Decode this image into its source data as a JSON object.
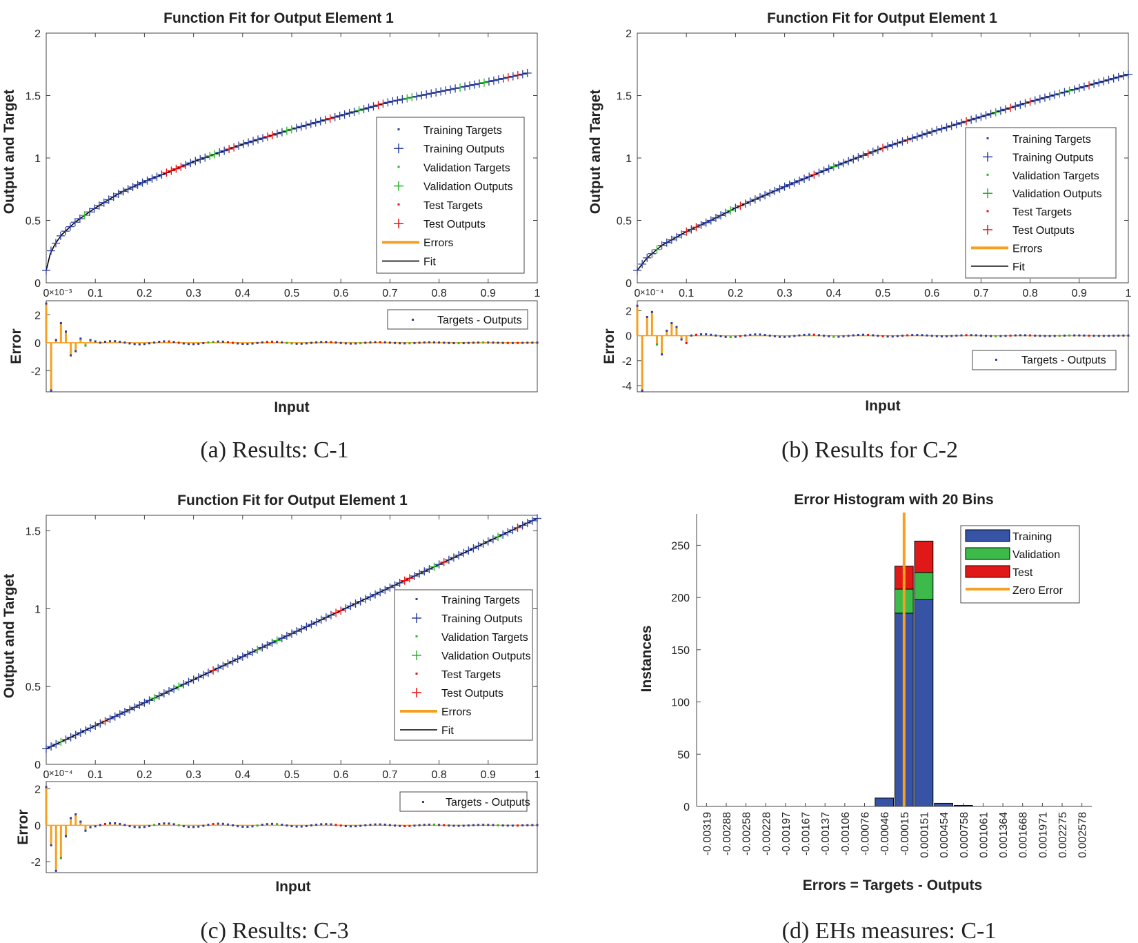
{
  "figure": {
    "captions": [
      "(a) Results: C-1",
      "(b) Results for C-2",
      "(c) Results: C-3",
      "(d) EHs measures: C-1"
    ]
  },
  "legend_labels": {
    "fit": [
      "Training Targets",
      "Training Outputs",
      "Validation Targets",
      "Validation Outputs",
      "Test Targets",
      "Test Outputs",
      "Errors",
      "Fit"
    ],
    "error": "Targets - Outputs",
    "hist": [
      "Training",
      "Validation",
      "Test",
      "Zero Error"
    ]
  },
  "colors": {
    "training": "#2b3fa0",
    "validation": "#2bb02b",
    "test": "#e81010",
    "errors": "#f5a020",
    "fit": "#000000",
    "hist_training": "#3653a6",
    "hist_validation": "#3cba4a",
    "hist_test": "#e01818"
  },
  "chart_data": [
    {
      "id": "a",
      "type": "line",
      "title": "Function Fit for Output Element 1",
      "xlabel": "Input",
      "ylabel": "Output and Target",
      "xlim": [
        0,
        1
      ],
      "ylim": [
        0,
        2
      ],
      "xticks": [
        "0",
        "0.1",
        "0.2",
        "0.3",
        "0.4",
        "0.5",
        "0.6",
        "0.7",
        "0.8",
        "0.9",
        "1"
      ],
      "yticks": [
        "0",
        "0.5",
        "1",
        "1.5",
        "2"
      ],
      "fit_curve": {
        "x": [
          0,
          0.01,
          0.03,
          0.06,
          0.1,
          0.15,
          0.2,
          0.3,
          0.4,
          0.5,
          0.6,
          0.7,
          0.8,
          0.9,
          0.98
        ],
        "y": [
          0.1,
          0.26,
          0.38,
          0.49,
          0.6,
          0.72,
          0.81,
          0.97,
          1.11,
          1.23,
          1.34,
          1.45,
          1.53,
          1.61,
          1.68
        ]
      },
      "test_x": [
        0.25,
        0.27,
        0.37,
        0.38,
        0.45,
        0.46,
        0.58,
        0.68,
        0.94,
        0.96
      ],
      "validation_x": [
        0.08,
        0.33,
        0.34,
        0.49,
        0.5,
        0.64,
        0.74,
        0.84,
        0.89
      ],
      "error_panel": {
        "ylabel": "Error",
        "exponent": "×10⁻³",
        "ylim": [
          -3.5,
          3
        ],
        "yticks": [
          "-2",
          "0",
          "2"
        ],
        "x": [
          0.0,
          0.01,
          0.02,
          0.03,
          0.04,
          0.05,
          0.06,
          0.07,
          0.08,
          0.09,
          0.1
        ],
        "values": [
          2.8,
          -3.4,
          0.2,
          1.4,
          0.8,
          -0.9,
          -0.6,
          0.3,
          -0.2,
          0.2,
          0.1
        ],
        "legend": "Targets - Outputs"
      }
    },
    {
      "id": "b",
      "type": "line",
      "title": "Function Fit for Output Element 1",
      "xlabel": "Input",
      "ylabel": "Output and Target",
      "xlim": [
        0,
        1
      ],
      "ylim": [
        0,
        2
      ],
      "xticks": [
        "0",
        "0.1",
        "0.2",
        "0.3",
        "0.4",
        "0.5",
        "0.6",
        "0.7",
        "0.8",
        "0.9",
        "1"
      ],
      "yticks": [
        "0",
        "0.5",
        "1",
        "1.5",
        "2"
      ],
      "fit_curve": {
        "x": [
          0,
          0.02,
          0.05,
          0.1,
          0.15,
          0.2,
          0.3,
          0.4,
          0.5,
          0.6,
          0.7,
          0.8,
          0.9,
          1.0
        ],
        "y": [
          0.1,
          0.2,
          0.3,
          0.41,
          0.5,
          0.6,
          0.77,
          0.93,
          1.08,
          1.21,
          1.33,
          1.45,
          1.56,
          1.67
        ]
      },
      "test_x": [
        0.1,
        0.12,
        0.21,
        0.36,
        0.47,
        0.5,
        0.55,
        0.67,
        0.76,
        0.8,
        0.92
      ],
      "validation_x": [
        0.04,
        0.19,
        0.4,
        0.55,
        0.73,
        0.86,
        0.88
      ],
      "error_panel": {
        "ylabel": "Error",
        "exponent": "×10⁻⁴",
        "ylim": [
          -4.5,
          2.8
        ],
        "yticks": [
          "-4",
          "-2",
          "0",
          "2"
        ],
        "x": [
          0.0,
          0.01,
          0.02,
          0.03,
          0.04,
          0.05,
          0.06,
          0.07,
          0.08,
          0.09,
          0.1
        ],
        "values": [
          2.4,
          -4.4,
          1.5,
          1.9,
          -0.7,
          -1.5,
          0.4,
          1.0,
          0.7,
          -0.3,
          -0.6
        ],
        "legend": "Targets - Outputs"
      }
    },
    {
      "id": "c",
      "type": "line",
      "title": "Function Fit for Output Element 1",
      "xlabel": "Input",
      "ylabel": "Output and Target",
      "xlim": [
        0,
        1
      ],
      "ylim": [
        0,
        1.6
      ],
      "xticks": [
        "0",
        "0.1",
        "0.2",
        "0.3",
        "0.4",
        "0.5",
        "0.6",
        "0.7",
        "0.8",
        "0.9",
        "1"
      ],
      "yticks": [
        "0",
        "0.5",
        "1",
        "1.5"
      ],
      "fit_curve": {
        "x": [
          0,
          1.0
        ],
        "y": [
          0.1,
          1.58
        ]
      },
      "test_x": [
        0.12,
        0.34,
        0.59,
        0.6,
        0.73,
        0.74,
        0.81,
        0.96
      ],
      "validation_x": [
        0.03,
        0.22,
        0.27,
        0.43,
        0.47,
        0.79,
        0.92
      ],
      "error_panel": {
        "ylabel": "Error",
        "exponent": "×10⁻⁴",
        "ylim": [
          -2.6,
          2.4
        ],
        "yticks": [
          "-2",
          "0",
          "2"
        ],
        "x": [
          0.0,
          0.01,
          0.02,
          0.03,
          0.04,
          0.05,
          0.06,
          0.07,
          0.08
        ],
        "values": [
          2.1,
          -1.1,
          -2.5,
          -1.8,
          -0.6,
          0.4,
          0.6,
          0.2,
          -0.3
        ],
        "legend": "Targets - Outputs"
      }
    },
    {
      "id": "d",
      "type": "bar",
      "title": "Error Histogram with 20 Bins",
      "xlabel": "Errors = Targets - Outputs",
      "ylabel": "Instances",
      "ylim": [
        0,
        280
      ],
      "yticks": [
        "0",
        "50",
        "100",
        "150",
        "200",
        "250"
      ],
      "categories": [
        "-0.00319",
        "-0.00288",
        "-0.00258",
        "-0.00228",
        "-0.00197",
        "-0.00167",
        "-0.00137",
        "-0.00106",
        "-0.00076",
        "-0.00046",
        "-0.00015",
        "0.000151",
        "0.000454",
        "0.000758",
        "0.001061",
        "0.001364",
        "0.001668",
        "0.001971",
        "0.002275",
        "0.002578"
      ],
      "series": [
        {
          "name": "Training",
          "values": [
            0,
            0,
            0,
            0,
            0,
            0,
            0,
            0,
            0,
            8,
            185,
            198,
            3,
            1,
            0,
            0,
            0,
            0,
            0,
            0
          ]
        },
        {
          "name": "Validation",
          "values": [
            0,
            0,
            0,
            0,
            0,
            0,
            0,
            0,
            0,
            0,
            23,
            26,
            0,
            0,
            0,
            0,
            0,
            0,
            0,
            0
          ]
        },
        {
          "name": "Test",
          "values": [
            0,
            0,
            0,
            0,
            0,
            0,
            0,
            0,
            0,
            0,
            22,
            30,
            0,
            0,
            0,
            0,
            0,
            0,
            0,
            0
          ]
        }
      ],
      "zero_error_bin": 10.5,
      "legend": [
        "Training",
        "Validation",
        "Test",
        "Zero Error"
      ]
    }
  ]
}
